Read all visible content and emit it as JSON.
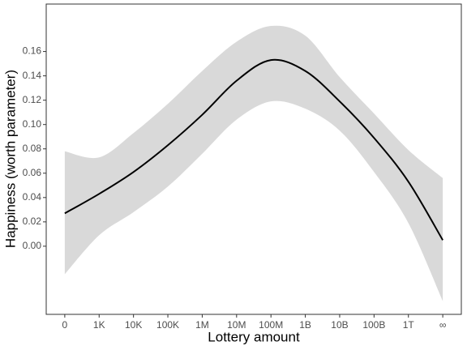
{
  "chart_data": {
    "type": "line",
    "x_label": "Lottery amount",
    "y_label": "Happiness (worth parameter)",
    "categories": [
      "0",
      "1K",
      "10K",
      "100K",
      "1M",
      "10M",
      "100M",
      "1B",
      "10B",
      "100B",
      "1T",
      "∞"
    ],
    "values": [
      0.027,
      0.043,
      0.061,
      0.083,
      0.108,
      0.136,
      0.153,
      0.144,
      0.119,
      0.089,
      0.053,
      0.005
    ],
    "upper": [
      0.078,
      0.073,
      0.093,
      0.117,
      0.144,
      0.168,
      0.181,
      0.173,
      0.139,
      0.109,
      0.079,
      0.056
    ],
    "lower": [
      -0.023,
      0.009,
      0.028,
      0.049,
      0.076,
      0.104,
      0.119,
      0.113,
      0.095,
      0.061,
      0.019,
      -0.045
    ],
    "color": "#000000",
    "band_color": "#d9d9d9",
    "ylim": [
      -0.056,
      0.199
    ],
    "yticks": [
      {
        "value": 0,
        "label": "0.00"
      },
      0.02,
      0.04,
      0.06,
      0.08,
      {
        "value": 0.1,
        "label": "0.10"
      },
      0.12,
      0.14,
      0.16
    ],
    "grid": false
  }
}
